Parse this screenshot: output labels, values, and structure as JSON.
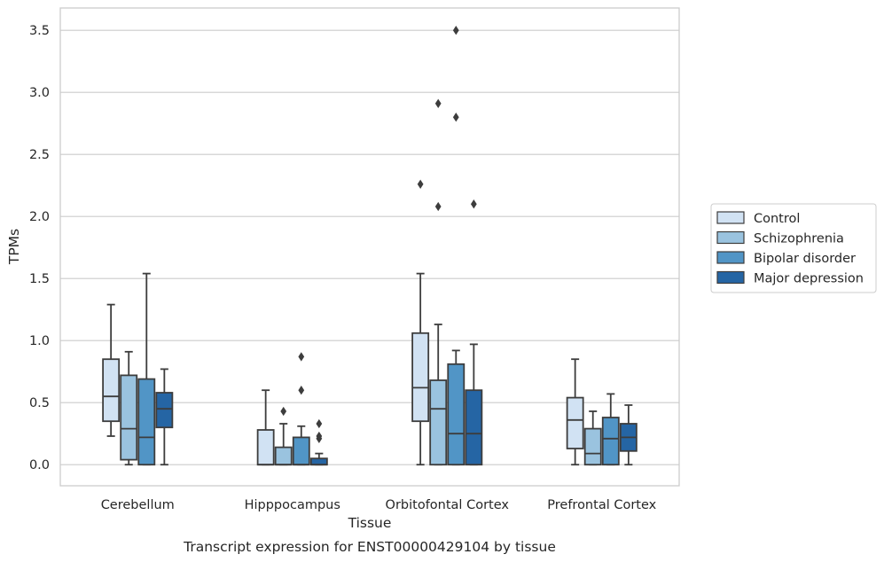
{
  "caption": "Transcript expression for ENST00000429104 by tissue",
  "chart_data": {
    "type": "boxplot",
    "title": "",
    "xlabel": "Tissue",
    "ylabel": "TPMs",
    "categories": [
      "Cerebellum",
      "Hipppocampus",
      "Orbitofontal Cortex",
      "Prefrontal Cortex"
    ],
    "ylim": [
      -0.17,
      3.68
    ],
    "yticks": [
      0.0,
      0.5,
      1.0,
      1.5,
      2.0,
      2.5,
      3.0,
      3.5
    ],
    "ytick_labels": [
      "0.0",
      "0.5",
      "1.0",
      "1.5",
      "2.0",
      "2.5",
      "3.0",
      "3.5"
    ],
    "grid": "horizontal",
    "legend_position": "right, outside plot",
    "series": [
      {
        "name": "Control",
        "color": "#d1e2f3",
        "boxes": [
          {
            "whislo": 0.23,
            "q1": 0.35,
            "med": 0.55,
            "q3": 0.85,
            "whishi": 1.29,
            "fliers": []
          },
          {
            "whislo": 0.0,
            "q1": 0.0,
            "med": 0.0,
            "q3": 0.28,
            "whishi": 0.6,
            "fliers": []
          },
          {
            "whislo": 0.0,
            "q1": 0.35,
            "med": 0.62,
            "q3": 1.06,
            "whishi": 1.54,
            "fliers": [
              2.26
            ]
          },
          {
            "whislo": 0.0,
            "q1": 0.13,
            "med": 0.36,
            "q3": 0.54,
            "whishi": 0.85,
            "fliers": []
          }
        ]
      },
      {
        "name": "Schizophrenia",
        "color": "#9ac3df",
        "boxes": [
          {
            "whislo": 0.0,
            "q1": 0.04,
            "med": 0.29,
            "q3": 0.72,
            "whishi": 0.91,
            "fliers": []
          },
          {
            "whislo": 0.0,
            "q1": 0.0,
            "med": 0.0,
            "q3": 0.14,
            "whishi": 0.33,
            "fliers": [
              0.43
            ]
          },
          {
            "whislo": 0.0,
            "q1": 0.0,
            "med": 0.45,
            "q3": 0.68,
            "whishi": 1.13,
            "fliers": [
              2.08,
              2.91
            ]
          },
          {
            "whislo": 0.0,
            "q1": 0.0,
            "med": 0.09,
            "q3": 0.29,
            "whishi": 0.43,
            "fliers": []
          }
        ]
      },
      {
        "name": "Bipolar disorder",
        "color": "#5195c6",
        "boxes": [
          {
            "whislo": 0.0,
            "q1": 0.0,
            "med": 0.22,
            "q3": 0.69,
            "whishi": 1.54,
            "fliers": []
          },
          {
            "whislo": 0.0,
            "q1": 0.0,
            "med": 0.0,
            "q3": 0.22,
            "whishi": 0.31,
            "fliers": [
              0.6,
              0.87
            ]
          },
          {
            "whislo": 0.0,
            "q1": 0.0,
            "med": 0.25,
            "q3": 0.81,
            "whishi": 0.92,
            "fliers": [
              2.8,
              3.5
            ]
          },
          {
            "whislo": 0.0,
            "q1": 0.0,
            "med": 0.21,
            "q3": 0.38,
            "whishi": 0.57,
            "fliers": []
          }
        ]
      },
      {
        "name": "Major depression",
        "color": "#2565a4",
        "boxes": [
          {
            "whislo": 0.0,
            "q1": 0.3,
            "med": 0.45,
            "q3": 0.58,
            "whishi": 0.77,
            "fliers": []
          },
          {
            "whislo": 0.0,
            "q1": 0.0,
            "med": 0.0,
            "q3": 0.05,
            "whishi": 0.09,
            "fliers": [
              0.21,
              0.23,
              0.33
            ]
          },
          {
            "whislo": 0.0,
            "q1": 0.0,
            "med": 0.25,
            "q3": 0.6,
            "whishi": 0.97,
            "fliers": [
              2.1
            ]
          },
          {
            "whislo": 0.0,
            "q1": 0.11,
            "med": 0.22,
            "q3": 0.33,
            "whishi": 0.48,
            "fliers": []
          }
        ]
      }
    ]
  }
}
